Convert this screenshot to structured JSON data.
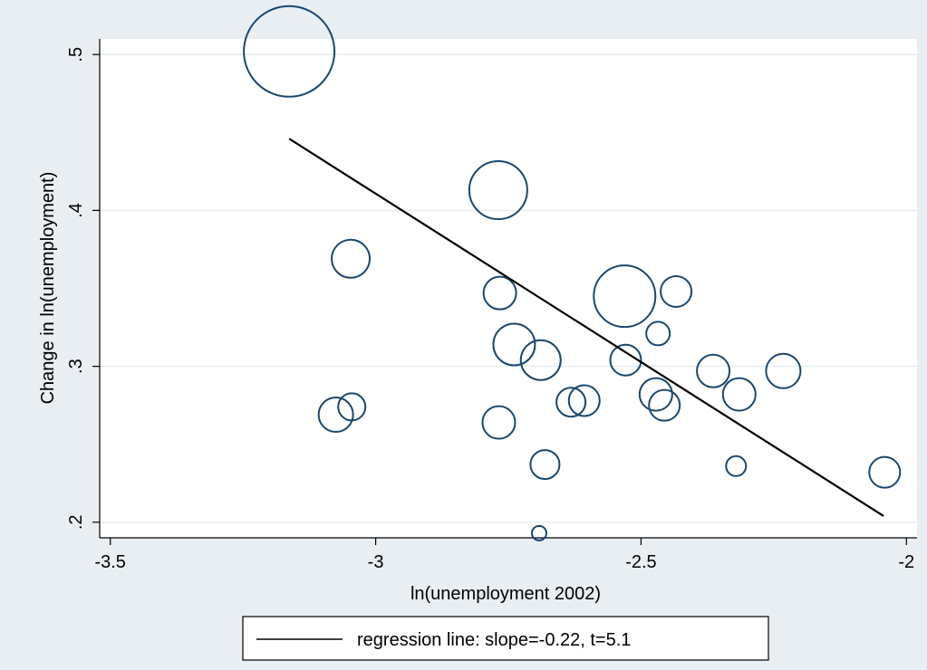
{
  "colors": {
    "background": "#e8eef2",
    "plot_background": "#ffffff",
    "grid": "#e6ebef",
    "bubble_stroke": "#1a476f",
    "line": "#000000"
  },
  "chart_data": {
    "type": "scatter",
    "title": "",
    "xlabel": "ln(unemployment 2002)",
    "ylabel": "Change in ln(unemployment)",
    "xlim": [
      -3.52,
      -1.98
    ],
    "ylim": [
      0.19,
      0.51
    ],
    "xticks": [
      -3.5,
      -3,
      -2.5,
      -2
    ],
    "xtick_labels": [
      "-3.5",
      "-3",
      "-2.5",
      "-2"
    ],
    "yticks": [
      0.2,
      0.3,
      0.4,
      0.5
    ],
    "ytick_labels": [
      ".2",
      ".3",
      ".4",
      ".5"
    ],
    "grid": true,
    "legend_position": "bottom-center",
    "series": [
      {
        "type": "bubble",
        "points": [
          {
            "x": -3.163,
            "y": 0.502,
            "size": 50
          },
          {
            "x": -2.769,
            "y": 0.413,
            "size": 32
          },
          {
            "x": -3.047,
            "y": 0.369,
            "size": 21
          },
          {
            "x": -2.766,
            "y": 0.347,
            "size": 18
          },
          {
            "x": -2.531,
            "y": 0.345,
            "size": 34
          },
          {
            "x": -2.434,
            "y": 0.348,
            "size": 17
          },
          {
            "x": -2.468,
            "y": 0.321,
            "size": 13
          },
          {
            "x": -2.739,
            "y": 0.314,
            "size": 23
          },
          {
            "x": -2.689,
            "y": 0.304,
            "size": 22
          },
          {
            "x": -2.529,
            "y": 0.304,
            "size": 17
          },
          {
            "x": -2.364,
            "y": 0.297,
            "size": 18
          },
          {
            "x": -2.232,
            "y": 0.297,
            "size": 19
          },
          {
            "x": -2.472,
            "y": 0.282,
            "size": 18
          },
          {
            "x": -2.315,
            "y": 0.282,
            "size": 18
          },
          {
            "x": -2.632,
            "y": 0.277,
            "size": 16
          },
          {
            "x": -2.607,
            "y": 0.278,
            "size": 17
          },
          {
            "x": -2.456,
            "y": 0.275,
            "size": 17
          },
          {
            "x": -3.075,
            "y": 0.269,
            "size": 19
          },
          {
            "x": -3.045,
            "y": 0.274,
            "size": 15
          },
          {
            "x": -2.768,
            "y": 0.264,
            "size": 18
          },
          {
            "x": -2.681,
            "y": 0.237,
            "size": 16
          },
          {
            "x": -2.321,
            "y": 0.236,
            "size": 11
          },
          {
            "x": -2.041,
            "y": 0.232,
            "size": 17
          },
          {
            "x": -2.692,
            "y": 0.193,
            "size": 8
          }
        ]
      },
      {
        "type": "line",
        "name": "regression line: slope=-0.22, t=5.1",
        "x": [
          -3.163,
          -2.043
        ],
        "y": [
          0.446,
          0.204
        ]
      }
    ]
  }
}
